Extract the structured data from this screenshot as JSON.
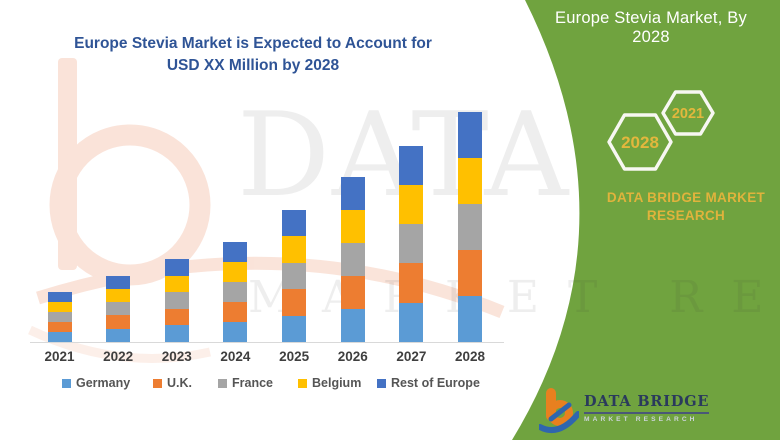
{
  "header": {
    "title_line1": "Europe Stevia Market is Expected to Account for",
    "title_line2": "USD XX Million by 2028",
    "title_color": "#2F5496"
  },
  "side_panel": {
    "bg_color": "#70A33F",
    "title": "Europe Stevia Market, By 2028",
    "hexagon_front": "2028",
    "hexagon_back": "2021",
    "hexagon_text_color": "#E3B73D",
    "brand_line1": "DATA BRIDGE MARKET",
    "brand_line2": "RESEARCH"
  },
  "watermark": {
    "line1": "DATA BRIDGE",
    "line2": "MARKET RESEARCH"
  },
  "footer_logo": {
    "name": "DATA BRIDGE",
    "subtitle": "MARKET RESEARCH"
  },
  "chart_data": {
    "type": "bar",
    "stacked": true,
    "title": "Europe Stevia Market is Expected to Account for USD XX Million by 2028",
    "xlabel": "",
    "ylabel": "",
    "units": "relative index (actual values undisclosed, shown as USD XX Million)",
    "grid": false,
    "legend_position": "bottom",
    "axis_line_color": "#D9D9D9",
    "categories": [
      "2021",
      "2022",
      "2023",
      "2024",
      "2025",
      "2026",
      "2027",
      "2028"
    ],
    "totals": [
      50,
      66.5,
      83,
      100,
      132,
      165,
      196.5,
      230
    ],
    "series": [
      {
        "name": "Germany",
        "color": "#5B9BD5",
        "values": [
          10,
          13.3,
          16.6,
          20,
          26.4,
          33,
          39.3,
          46
        ]
      },
      {
        "name": "U.K.",
        "color": "#ED7D31",
        "values": [
          10,
          13.3,
          16.6,
          20,
          26.4,
          33,
          39.3,
          46
        ]
      },
      {
        "name": "France",
        "color": "#A5A5A5",
        "values": [
          10,
          13.3,
          16.6,
          20,
          26.4,
          33,
          39.3,
          46
        ]
      },
      {
        "name": "Belgium",
        "color": "#FFC000",
        "values": [
          10,
          13.3,
          16.6,
          20,
          26.4,
          33,
          39.3,
          46
        ]
      },
      {
        "name": "Rest of Europe",
        "color": "#4472C4",
        "values": [
          10,
          13.3,
          16.6,
          20,
          26.4,
          33,
          39.3,
          46
        ]
      }
    ]
  }
}
